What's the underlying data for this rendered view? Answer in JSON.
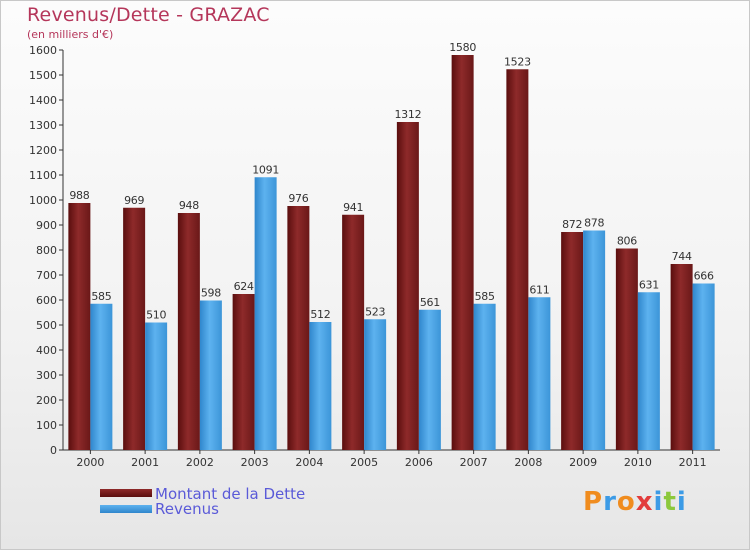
{
  "header": {
    "title": "Revenus/Dette - GRAZAC",
    "subtitle": "(en milliers d'€)"
  },
  "legend": {
    "dette_label": "Montant de la Dette",
    "revenus_label": "Revenus"
  },
  "logo": {
    "letters": [
      "P",
      "r",
      "o",
      "x",
      "i",
      "t",
      "i"
    ],
    "colors": [
      "#f08c1e",
      "#3c9be6",
      "#f08c1e",
      "#e23c3c",
      "#3c9be6",
      "#8cc83c",
      "#3c9be6"
    ]
  },
  "colors": {
    "dette": "#7a1e1e",
    "revenus": "#4aa3e6",
    "title": "#b5365a",
    "legend_text": "#5a5ad8"
  },
  "chart_data": {
    "type": "bar",
    "title": "Revenus/Dette - GRAZAC",
    "subtitle": "(en milliers d'€)",
    "categories": [
      "2000",
      "2001",
      "2002",
      "2003",
      "2004",
      "2005",
      "2006",
      "2007",
      "2008",
      "2009",
      "2010",
      "2011"
    ],
    "series": [
      {
        "name": "Montant de la Dette",
        "values": [
          988,
          969,
          948,
          624,
          976,
          941,
          1312,
          1580,
          1523,
          872,
          806,
          744
        ]
      },
      {
        "name": "Revenus",
        "values": [
          585,
          510,
          598,
          1091,
          512,
          523,
          561,
          585,
          611,
          878,
          631,
          666
        ]
      }
    ],
    "ylim": [
      0,
      1600
    ],
    "yticks": [
      0,
      100,
      200,
      300,
      400,
      500,
      600,
      700,
      800,
      900,
      1000,
      1100,
      1200,
      1300,
      1400,
      1500,
      1600
    ],
    "grid": false,
    "legend_position": "bottom-left"
  }
}
